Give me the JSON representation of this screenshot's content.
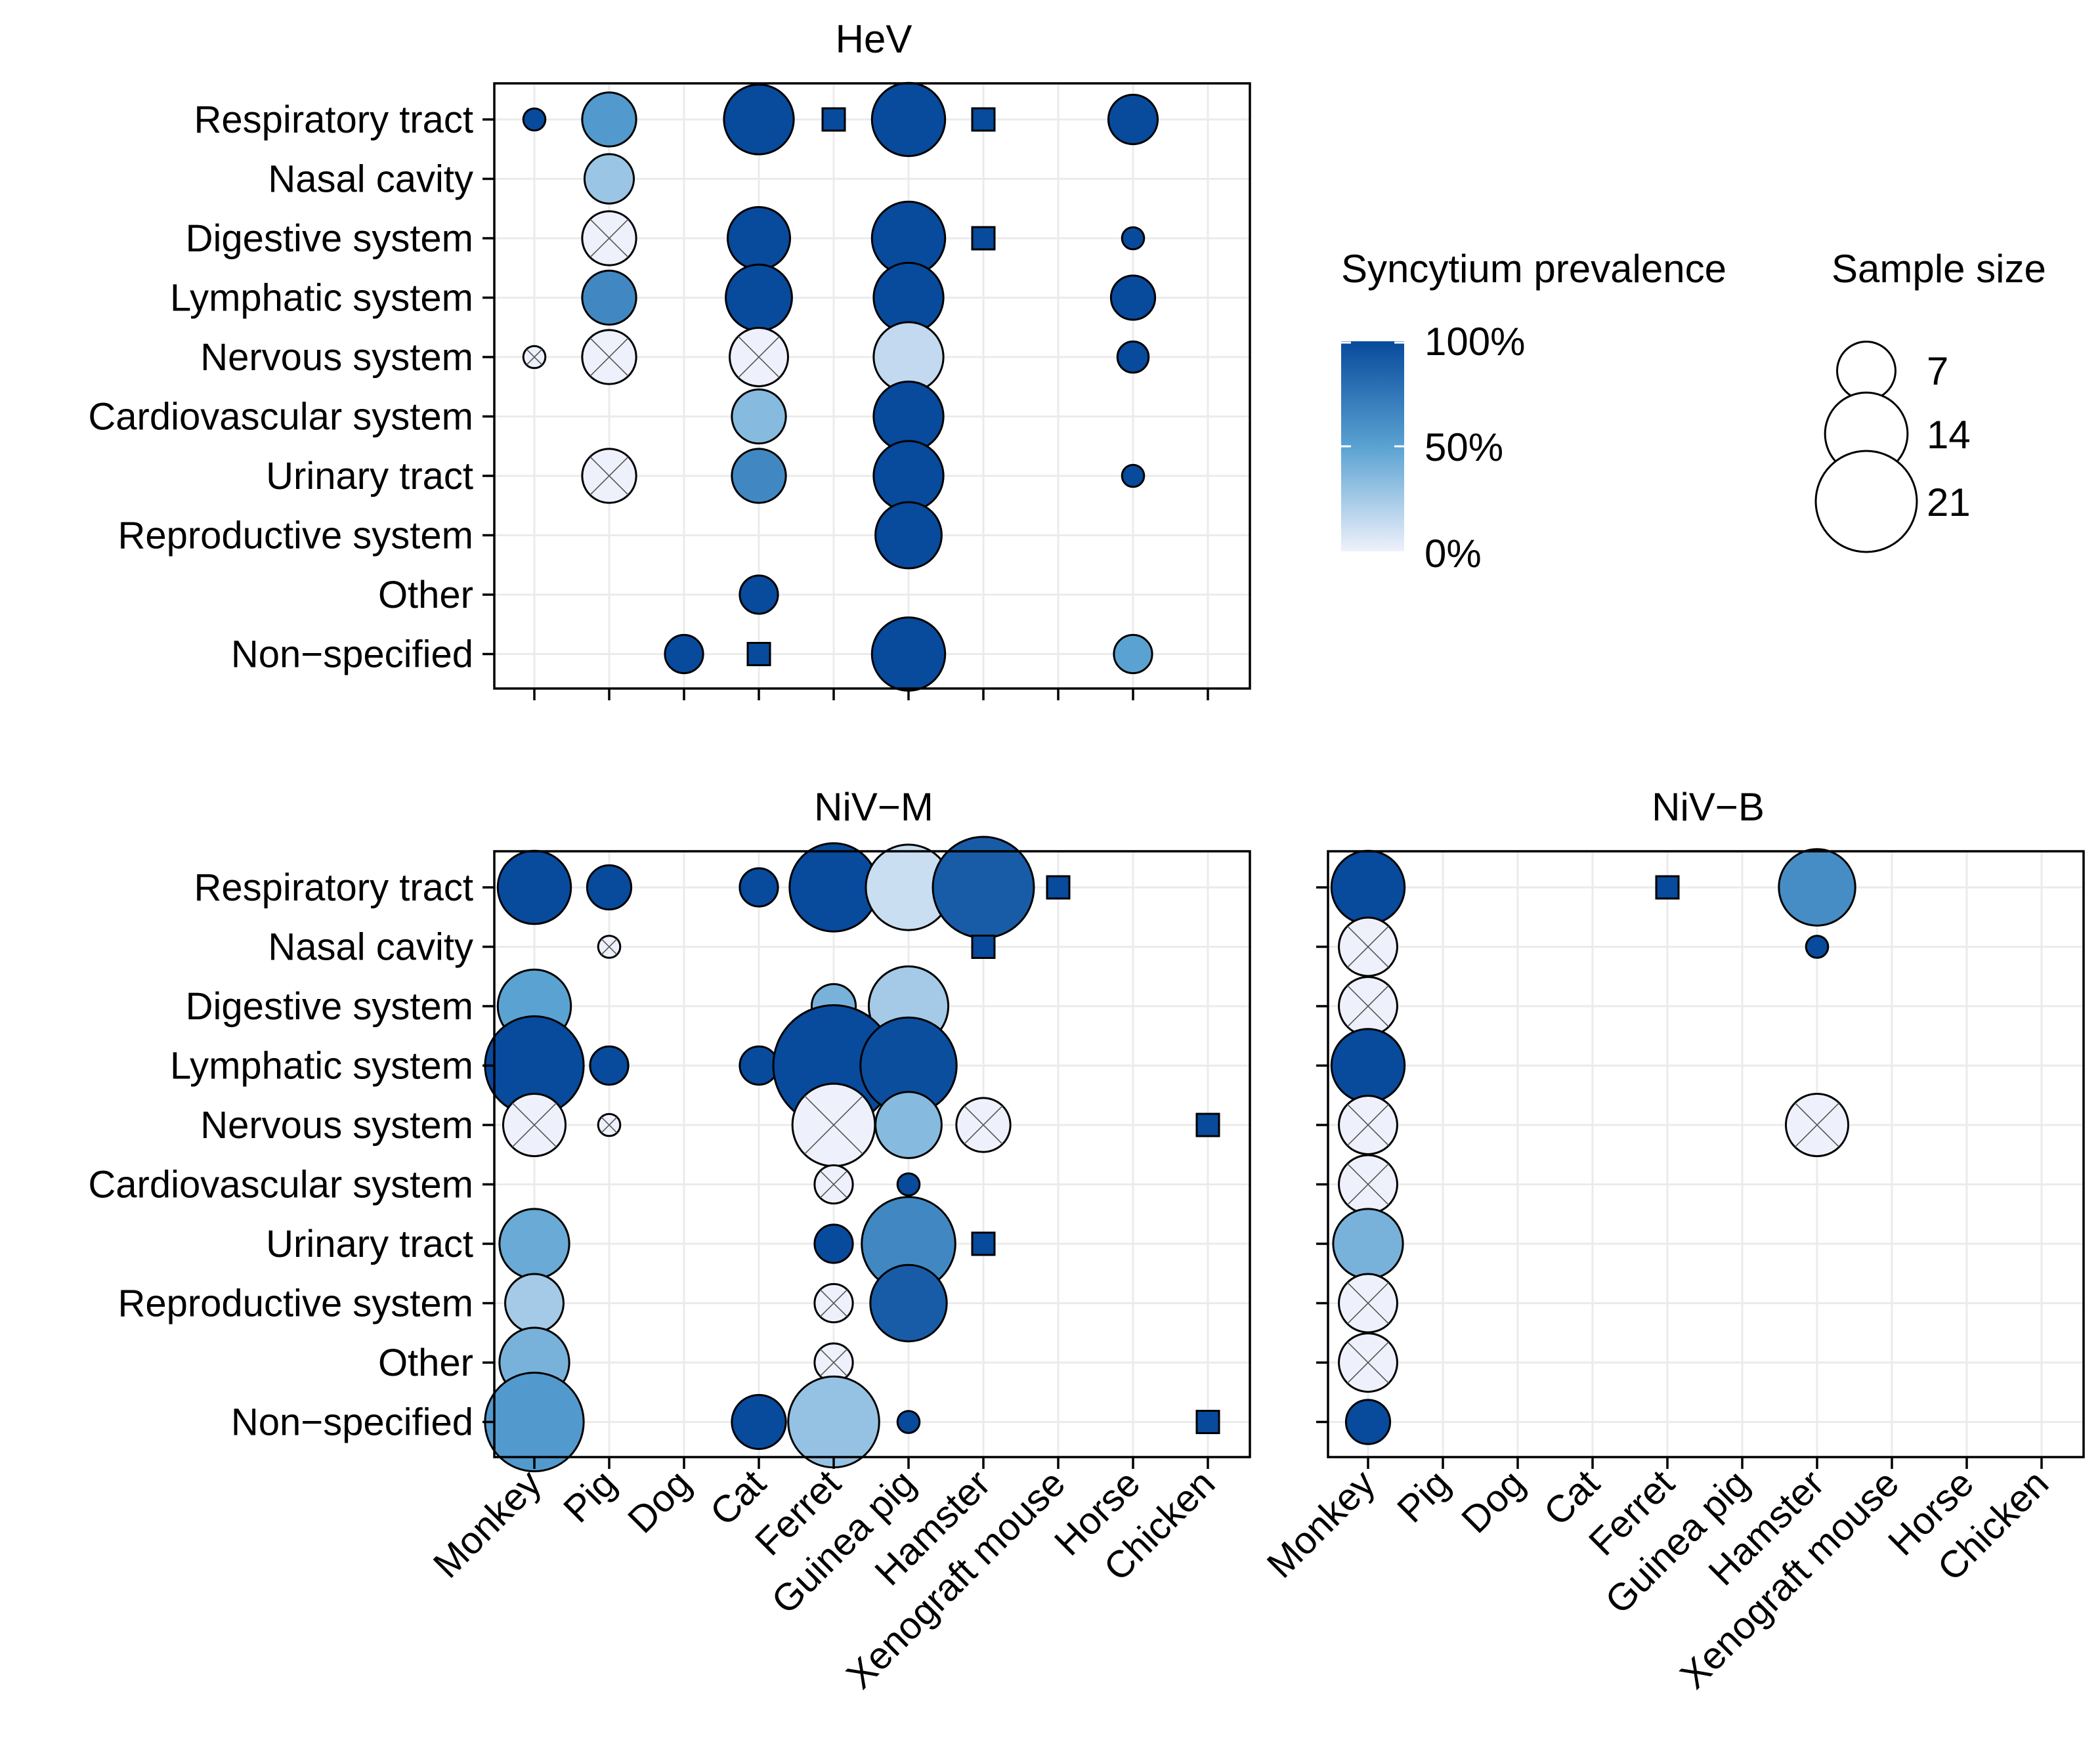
{
  "chart_data": {
    "type": "scatter",
    "subtype": "bubble-matrix",
    "categories_x": [
      "Monkey",
      "Pig",
      "Dog",
      "Cat",
      "Ferret",
      "Guinea pig",
      "Hamster",
      "Xenograft mouse",
      "Horse",
      "Chicken"
    ],
    "categories_y": [
      "Respiratory tract",
      "Nasal cavity",
      "Digestive system",
      "Lymphatic system",
      "Nervous system",
      "Cardiovascular system",
      "Urinary tract",
      "Reproductive system",
      "Other",
      "Non−specified"
    ],
    "legend_color": {
      "title": "Syncytium prevalence",
      "low": "#eef1fb",
      "mid": "#5aa2d2",
      "high": "#084a9c",
      "labels": [
        "100%",
        "50%",
        "0%"
      ]
    },
    "legend_size": {
      "title": "Sample size",
      "values": [
        7,
        14,
        21
      ],
      "labels": [
        "7",
        "14",
        "21"
      ]
    },
    "panels": [
      {
        "title": "HeV",
        "points": [
          {
            "x": "Monkey",
            "y": "Respiratory tract",
            "n": 1,
            "p": 100,
            "shape": "circle"
          },
          {
            "x": "Pig",
            "y": "Respiratory tract",
            "n": 6,
            "p": 55,
            "shape": "circle"
          },
          {
            "x": "Cat",
            "y": "Respiratory tract",
            "n": 10,
            "p": 100,
            "shape": "circle"
          },
          {
            "x": "Ferret",
            "y": "Respiratory tract",
            "n": 4,
            "p": 100,
            "shape": "square"
          },
          {
            "x": "Guinea pig",
            "y": "Respiratory tract",
            "n": 11,
            "p": 100,
            "shape": "circle"
          },
          {
            "x": "Hamster",
            "y": "Respiratory tract",
            "n": 4,
            "p": 100,
            "shape": "square"
          },
          {
            "x": "Horse",
            "y": "Respiratory tract",
            "n": 5,
            "p": 100,
            "shape": "circle"
          },
          {
            "x": "Pig",
            "y": "Nasal cavity",
            "n": 5,
            "p": 28,
            "shape": "circle"
          },
          {
            "x": "Pig",
            "y": "Digestive system",
            "n": 6,
            "p": 0,
            "shape": "circle"
          },
          {
            "x": "Cat",
            "y": "Digestive system",
            "n": 8,
            "p": 100,
            "shape": "circle"
          },
          {
            "x": "Guinea pig",
            "y": "Digestive system",
            "n": 11,
            "p": 100,
            "shape": "circle"
          },
          {
            "x": "Hamster",
            "y": "Digestive system",
            "n": 4,
            "p": 100,
            "shape": "square"
          },
          {
            "x": "Horse",
            "y": "Digestive system",
            "n": 1,
            "p": 100,
            "shape": "circle"
          },
          {
            "x": "Pig",
            "y": "Lymphatic system",
            "n": 6,
            "p": 65,
            "shape": "circle"
          },
          {
            "x": "Cat",
            "y": "Lymphatic system",
            "n": 9,
            "p": 100,
            "shape": "circle"
          },
          {
            "x": "Guinea pig",
            "y": "Lymphatic system",
            "n": 10,
            "p": 100,
            "shape": "circle"
          },
          {
            "x": "Horse",
            "y": "Lymphatic system",
            "n": 4,
            "p": 100,
            "shape": "circle"
          },
          {
            "x": "Monkey",
            "y": "Nervous system",
            "n": 1,
            "p": 0,
            "shape": "circle"
          },
          {
            "x": "Pig",
            "y": "Nervous system",
            "n": 6,
            "p": 0,
            "shape": "circle"
          },
          {
            "x": "Cat",
            "y": "Nervous system",
            "n": 7,
            "p": 0,
            "shape": "circle"
          },
          {
            "x": "Guinea pig",
            "y": "Nervous system",
            "n": 10,
            "p": 15,
            "shape": "circle"
          },
          {
            "x": "Horse",
            "y": "Nervous system",
            "n": 2,
            "p": 100,
            "shape": "circle"
          },
          {
            "x": "Cat",
            "y": "Cardiovascular system",
            "n": 6,
            "p": 35,
            "shape": "circle"
          },
          {
            "x": "Guinea pig",
            "y": "Cardiovascular system",
            "n": 10,
            "p": 100,
            "shape": "circle"
          },
          {
            "x": "Pig",
            "y": "Urinary tract",
            "n": 6,
            "p": 0,
            "shape": "circle"
          },
          {
            "x": "Cat",
            "y": "Urinary tract",
            "n": 6,
            "p": 65,
            "shape": "circle"
          },
          {
            "x": "Guinea pig",
            "y": "Urinary tract",
            "n": 10,
            "p": 100,
            "shape": "circle"
          },
          {
            "x": "Horse",
            "y": "Urinary tract",
            "n": 1,
            "p": 100,
            "shape": "circle"
          },
          {
            "x": "Guinea pig",
            "y": "Reproductive system",
            "n": 9,
            "p": 100,
            "shape": "circle"
          },
          {
            "x": "Cat",
            "y": "Other",
            "n": 3,
            "p": 100,
            "shape": "circle"
          },
          {
            "x": "Dog",
            "y": "Non−specified",
            "n": 3,
            "p": 100,
            "shape": "circle"
          },
          {
            "x": "Cat",
            "y": "Non−specified",
            "n": 3,
            "p": 100,
            "shape": "square"
          },
          {
            "x": "Guinea pig",
            "y": "Non−specified",
            "n": 11,
            "p": 100,
            "shape": "circle"
          },
          {
            "x": "Horse",
            "y": "Non−specified",
            "n": 3,
            "p": 50,
            "shape": "circle"
          }
        ]
      },
      {
        "title": "NiV−M",
        "points": [
          {
            "x": "Monkey",
            "y": "Respiratory tract",
            "n": 11,
            "p": 100,
            "shape": "circle"
          },
          {
            "x": "Pig",
            "y": "Respiratory tract",
            "n": 4,
            "p": 100,
            "shape": "circle"
          },
          {
            "x": "Cat",
            "y": "Respiratory tract",
            "n": 3,
            "p": 100,
            "shape": "circle"
          },
          {
            "x": "Ferret",
            "y": "Respiratory tract",
            "n": 16,
            "p": 100,
            "shape": "circle"
          },
          {
            "x": "Guinea pig",
            "y": "Respiratory tract",
            "n": 15,
            "p": 12,
            "shape": "circle"
          },
          {
            "x": "Hamster",
            "y": "Respiratory tract",
            "n": 21,
            "p": 90,
            "shape": "circle"
          },
          {
            "x": "Xenograft mouse",
            "y": "Respiratory tract",
            "n": 4,
            "p": 100,
            "shape": "square"
          },
          {
            "x": "Pig",
            "y": "Nasal cavity",
            "n": 1,
            "p": 0,
            "shape": "circle"
          },
          {
            "x": "Hamster",
            "y": "Nasal cavity",
            "n": 4,
            "p": 100,
            "shape": "square"
          },
          {
            "x": "Monkey",
            "y": "Digestive system",
            "n": 11,
            "p": 50,
            "shape": "circle"
          },
          {
            "x": "Ferret",
            "y": "Digestive system",
            "n": 4,
            "p": 40,
            "shape": "circle"
          },
          {
            "x": "Guinea pig",
            "y": "Digestive system",
            "n": 13,
            "p": 25,
            "shape": "circle"
          },
          {
            "x": "Monkey",
            "y": "Lymphatic system",
            "n": 20,
            "p": 100,
            "shape": "circle"
          },
          {
            "x": "Pig",
            "y": "Lymphatic system",
            "n": 3,
            "p": 100,
            "shape": "circle"
          },
          {
            "x": "Cat",
            "y": "Lymphatic system",
            "n": 3,
            "p": 100,
            "shape": "circle"
          },
          {
            "x": "Ferret",
            "y": "Lymphatic system",
            "n": 30,
            "p": 100,
            "shape": "circle"
          },
          {
            "x": "Guinea pig",
            "y": "Lymphatic system",
            "n": 19,
            "p": 98,
            "shape": "circle"
          },
          {
            "x": "Monkey",
            "y": "Nervous system",
            "n": 8,
            "p": 0,
            "shape": "circle"
          },
          {
            "x": "Pig",
            "y": "Nervous system",
            "n": 1,
            "p": 0,
            "shape": "circle"
          },
          {
            "x": "Ferret",
            "y": "Nervous system",
            "n": 14,
            "p": 0,
            "shape": "circle"
          },
          {
            "x": "Guinea pig",
            "y": "Nervous system",
            "n": 9,
            "p": 35,
            "shape": "circle"
          },
          {
            "x": "Hamster",
            "y": "Nervous system",
            "n": 6,
            "p": 0,
            "shape": "circle"
          },
          {
            "x": "Chicken",
            "y": "Nervous system",
            "n": 4,
            "p": 100,
            "shape": "square"
          },
          {
            "x": "Ferret",
            "y": "Cardiovascular system",
            "n": 3,
            "p": 0,
            "shape": "circle"
          },
          {
            "x": "Guinea pig",
            "y": "Cardiovascular system",
            "n": 1,
            "p": 100,
            "shape": "circle"
          },
          {
            "x": "Monkey",
            "y": "Urinary tract",
            "n": 10,
            "p": 45,
            "shape": "circle"
          },
          {
            "x": "Ferret",
            "y": "Urinary tract",
            "n": 3,
            "p": 100,
            "shape": "circle"
          },
          {
            "x": "Guinea pig",
            "y": "Urinary tract",
            "n": 18,
            "p": 65,
            "shape": "circle"
          },
          {
            "x": "Hamster",
            "y": "Urinary tract",
            "n": 4,
            "p": 100,
            "shape": "square"
          },
          {
            "x": "Monkey",
            "y": "Reproductive system",
            "n": 7,
            "p": 25,
            "shape": "circle"
          },
          {
            "x": "Ferret",
            "y": "Reproductive system",
            "n": 3,
            "p": 0,
            "shape": "circle"
          },
          {
            "x": "Guinea pig",
            "y": "Reproductive system",
            "n": 12,
            "p": 90,
            "shape": "circle"
          },
          {
            "x": "Monkey",
            "y": "Other",
            "n": 10,
            "p": 40,
            "shape": "circle"
          },
          {
            "x": "Ferret",
            "y": "Other",
            "n": 3,
            "p": 0,
            "shape": "circle"
          },
          {
            "x": "Monkey",
            "y": "Non−specified",
            "n": 20,
            "p": 55,
            "shape": "circle"
          },
          {
            "x": "Cat",
            "y": "Non−specified",
            "n": 6,
            "p": 100,
            "shape": "circle"
          },
          {
            "x": "Ferret",
            "y": "Non−specified",
            "n": 17,
            "p": 30,
            "shape": "circle"
          },
          {
            "x": "Guinea pig",
            "y": "Non−specified",
            "n": 1,
            "p": 100,
            "shape": "circle"
          },
          {
            "x": "Chicken",
            "y": "Non−specified",
            "n": 4,
            "p": 100,
            "shape": "square"
          }
        ]
      },
      {
        "title": "NiV−B",
        "points": [
          {
            "x": "Monkey",
            "y": "Respiratory tract",
            "n": 11,
            "p": 100,
            "shape": "circle"
          },
          {
            "x": "Ferret",
            "y": "Respiratory tract",
            "n": 4,
            "p": 100,
            "shape": "square"
          },
          {
            "x": "Hamster",
            "y": "Respiratory tract",
            "n": 12,
            "p": 62,
            "shape": "circle"
          },
          {
            "x": "Hamster",
            "y": "Nasal cavity",
            "n": 1,
            "p": 100,
            "shape": "circle"
          },
          {
            "x": "Monkey",
            "y": "Nasal cavity",
            "n": 7,
            "p": 0,
            "shape": "circle"
          },
          {
            "x": "Monkey",
            "y": "Digestive system",
            "n": 7,
            "p": 0,
            "shape": "circle"
          },
          {
            "x": "Monkey",
            "y": "Lymphatic system",
            "n": 11,
            "p": 100,
            "shape": "circle"
          },
          {
            "x": "Monkey",
            "y": "Nervous system",
            "n": 7,
            "p": 0,
            "shape": "circle"
          },
          {
            "x": "Hamster",
            "y": "Nervous system",
            "n": 8,
            "p": 0,
            "shape": "circle"
          },
          {
            "x": "Monkey",
            "y": "Cardiovascular system",
            "n": 7,
            "p": 0,
            "shape": "circle"
          },
          {
            "x": "Monkey",
            "y": "Urinary tract",
            "n": 10,
            "p": 40,
            "shape": "circle"
          },
          {
            "x": "Monkey",
            "y": "Reproductive system",
            "n": 7,
            "p": 0,
            "shape": "circle"
          },
          {
            "x": "Monkey",
            "y": "Other",
            "n": 7,
            "p": 0,
            "shape": "circle"
          },
          {
            "x": "Monkey",
            "y": "Non−specified",
            "n": 4,
            "p": 100,
            "shape": "circle"
          }
        ]
      }
    ]
  }
}
